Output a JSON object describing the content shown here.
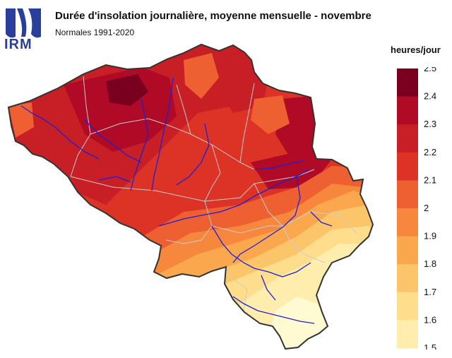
{
  "logo": {
    "text": "IRM"
  },
  "title": "Durée d'insolation journalière, moyenne mensuelle - novembre",
  "subtitle": "Normales 1991-2020",
  "legend": {
    "unit": "heures/jour",
    "ticks": [
      "2.5",
      "2.4",
      "2.3",
      "2.2",
      "2.1",
      "2",
      "1.9",
      "1.8",
      "1.7",
      "1.6",
      "1.5"
    ],
    "colors": [
      "#7a001f",
      "#b00a26",
      "#c81e25",
      "#dc3326",
      "#ee5f31",
      "#f6873d",
      "#fba74e",
      "#fdc56a",
      "#fedd8c",
      "#ffedae",
      "#fffad1"
    ]
  },
  "colors": {
    "river": "#1f1fd6",
    "border": "#333333",
    "province_border": "#cccccc"
  }
}
